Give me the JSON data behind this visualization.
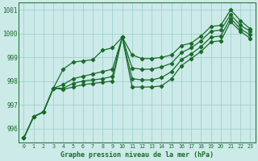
{
  "xlabel": "Graphe pression niveau de la mer (hPa)",
  "background_color": "#cceae8",
  "grid_color": "#99cccc",
  "line_color": "#1a6b2a",
  "ylim": [
    995.4,
    1001.3
  ],
  "yticks": [
    996,
    997,
    998,
    999,
    1000,
    1001
  ],
  "lines": [
    [
      995.6,
      996.5,
      996.7,
      997.7,
      998.5,
      998.8,
      998.85,
      998.9,
      999.3,
      999.4,
      999.85,
      999.1,
      998.95,
      998.95,
      999.0,
      999.1,
      999.5,
      999.6,
      999.9,
      1000.3,
      1000.35,
      1001.0,
      1000.55,
      1000.2
    ],
    [
      995.6,
      996.5,
      996.7,
      997.7,
      997.85,
      998.1,
      998.2,
      998.3,
      998.4,
      998.5,
      999.85,
      998.55,
      998.5,
      998.5,
      998.6,
      998.75,
      999.2,
      999.4,
      999.7,
      1000.1,
      1000.15,
      1000.8,
      1000.35,
      1000.1
    ],
    [
      995.6,
      996.5,
      996.7,
      997.7,
      997.7,
      997.9,
      998.0,
      998.05,
      998.1,
      998.2,
      999.85,
      998.1,
      998.05,
      998.05,
      998.15,
      998.4,
      998.9,
      999.15,
      999.45,
      999.85,
      999.9,
      1000.65,
      1000.2,
      999.95
    ],
    [
      995.6,
      996.5,
      996.7,
      997.7,
      997.65,
      997.75,
      997.85,
      997.9,
      997.95,
      998.0,
      999.85,
      997.75,
      997.75,
      997.75,
      997.8,
      998.1,
      998.65,
      998.95,
      999.25,
      999.65,
      999.7,
      1000.5,
      1000.1,
      999.8
    ]
  ]
}
